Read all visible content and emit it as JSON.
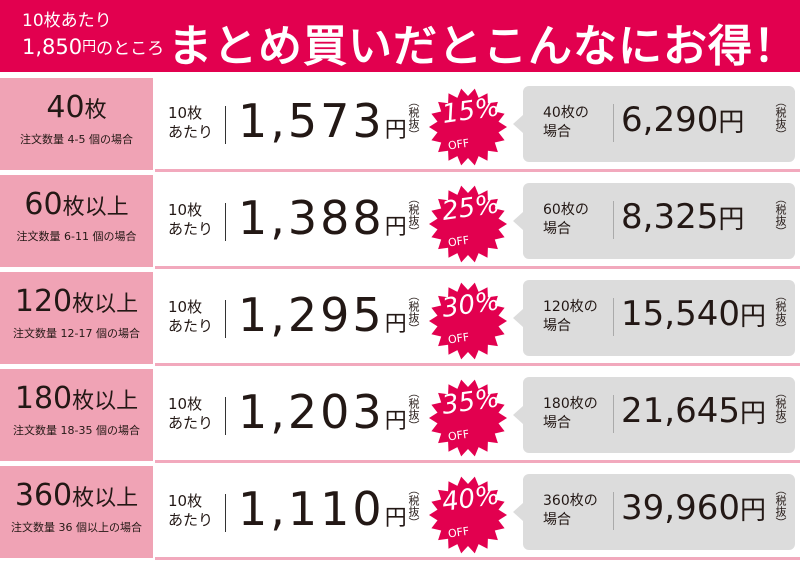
{
  "header": {
    "base_line1_num": "10",
    "base_line1_text": "枚あたり",
    "base_line2_num": "1,850",
    "base_line2_yen": "円",
    "base_line2_text": "のところ",
    "title": "まとめ買いだとこんなにお得！"
  },
  "labels": {
    "per_line1": "10枚",
    "per_line2": "あたり",
    "yen": "円",
    "tax": "（税抜）",
    "off": "OFF",
    "case_suffix": "の場合"
  },
  "colors": {
    "accent": "#e2004f",
    "left_cell": "#f0a3b5",
    "gray_box": "#dcdcdc"
  },
  "rows": [
    {
      "qty": "40",
      "qty_unit": "枚",
      "condition": "注文数量 4-5 個の場合",
      "unit_price": "1,573",
      "discount": "15%",
      "case_line1": "40枚の",
      "case_line2": "場合",
      "total": "6,290"
    },
    {
      "qty": "60",
      "qty_unit": "枚以上",
      "condition": "注文数量 6-11 個の場合",
      "unit_price": "1,388",
      "discount": "25%",
      "case_line1": "60枚の",
      "case_line2": "場合",
      "total": "8,325"
    },
    {
      "qty": "120",
      "qty_unit": "枚以上",
      "condition": "注文数量 12-17 個の場合",
      "unit_price": "1,295",
      "discount": "30%",
      "case_line1": "120枚の",
      "case_line2": "場合",
      "total": "15,540"
    },
    {
      "qty": "180",
      "qty_unit": "枚以上",
      "condition": "注文数量 18-35 個の場合",
      "unit_price": "1,203",
      "discount": "35%",
      "case_line1": "180枚の",
      "case_line2": "場合",
      "total": "21,645"
    },
    {
      "qty": "360",
      "qty_unit": "枚以上",
      "condition": "注文数量 36 個以上の場合",
      "unit_price": "1,110",
      "discount": "40%",
      "case_line1": "360枚の",
      "case_line2": "場合",
      "total": "39,960"
    }
  ]
}
